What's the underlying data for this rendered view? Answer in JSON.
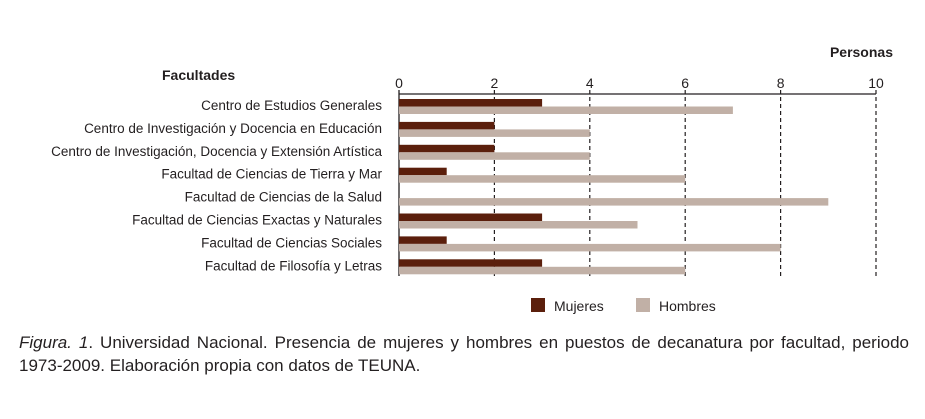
{
  "chart_data": {
    "type": "bar",
    "orientation": "horizontal",
    "xlabel": "Personas",
    "ylabel": "Facultades",
    "xlim": [
      0,
      10
    ],
    "xticks": [
      0,
      2,
      4,
      6,
      8,
      10
    ],
    "grid": true,
    "grid_style": "dashed",
    "categories": [
      "Centro de Estudios Generales",
      "Centro de Investigación y Docencia en Educación",
      "Centro de Investigación, Docencia y Extensión Artística",
      "Facultad de Ciencias de Tierra y Mar",
      "Facultad de Ciencias de la Salud",
      "Facultad de Ciencias Exactas y Naturales",
      "Facultad de Ciencias Sociales",
      "Facultad de Filosofía y Letras"
    ],
    "series": [
      {
        "name": "Mujeres",
        "color": "#5b1f0c",
        "values": [
          3,
          2,
          2,
          1,
          0,
          3,
          1,
          3
        ]
      },
      {
        "name": "Hombres",
        "color": "#c1b0a6",
        "values": [
          7,
          4,
          4,
          6,
          9,
          5,
          8,
          6
        ]
      }
    ],
    "legend_position": "bottom"
  },
  "caption": {
    "label": "Figura. 1",
    "text": ". Universidad Nacional. Presencia de mujeres y hombres en puestos de decanatura por facultad, periodo 1973-2009. Elaboración propia con datos de TEUNA."
  }
}
